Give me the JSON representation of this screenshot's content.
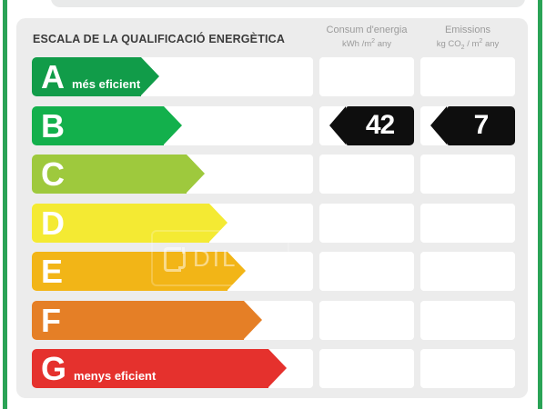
{
  "header": {
    "title": "ESCALA DE LA QUALIFICACIÓ ENERGÈTICA",
    "columns": [
      {
        "title": "Consum d'energia",
        "unit_pre": "kWh /m",
        "unit_sup": "2",
        "unit_post": " any"
      },
      {
        "title": "Emissions",
        "unit_pre": "kg CO",
        "unit_sub": "2",
        "unit_mid": " / m",
        "unit_sup": "2",
        "unit_post": " any"
      }
    ]
  },
  "chart_data": {
    "type": "bar",
    "title": "ESCALA DE LA QUALIFICACIÓ ENERGÈTICA",
    "categories": [
      "A",
      "B",
      "C",
      "D",
      "E",
      "F",
      "G"
    ],
    "category_labels": [
      "més eficient",
      "",
      "",
      "",
      "",
      "",
      "menys eficient"
    ],
    "bar_colors": [
      "#119c49",
      "#13b04c",
      "#9ec93d",
      "#f4ea33",
      "#f2b517",
      "#e57f26",
      "#e5312d"
    ],
    "relative_bar_widths": [
      140,
      165,
      190,
      215,
      235,
      253,
      280
    ],
    "rated_letter": "B",
    "consum_energia_kwh_m2_any": 42,
    "emissions_kg_co2_m2_any": 7,
    "legend_position": "none",
    "grid": false
  },
  "scale": {
    "rows": [
      {
        "letter": "A",
        "label": "més eficient",
        "color": "#119c49",
        "arrow_width": 140,
        "consum": "",
        "emissions": ""
      },
      {
        "letter": "B",
        "label": "",
        "color": "#13b04c",
        "arrow_width": 165,
        "consum": "42",
        "emissions": "7"
      },
      {
        "letter": "C",
        "label": "",
        "color": "#9ec93d",
        "arrow_width": 190,
        "consum": "",
        "emissions": ""
      },
      {
        "letter": "D",
        "label": "",
        "color": "#f4ea33",
        "arrow_width": 215,
        "consum": "",
        "emissions": ""
      },
      {
        "letter": "E",
        "label": "",
        "color": "#f2b517",
        "arrow_width": 235,
        "consum": "",
        "emissions": ""
      },
      {
        "letter": "F",
        "label": "",
        "color": "#e57f26",
        "arrow_width": 253,
        "consum": "",
        "emissions": ""
      },
      {
        "letter": "G",
        "label": "menys eficient",
        "color": "#e5312d",
        "arrow_width": 280,
        "consum": "",
        "emissions": ""
      }
    ],
    "value_arrow_color": "#0e0e0e"
  },
  "watermark": {
    "text": "DIL"
  },
  "theme": {
    "side_bar_color": "#2aa356",
    "panel_bg": "#ececec",
    "top_card_bg": "#e9eaea",
    "cell_bg": "#ffffff",
    "title_color": "#3b3b3b",
    "header_text_color": "#9b9b9b"
  }
}
